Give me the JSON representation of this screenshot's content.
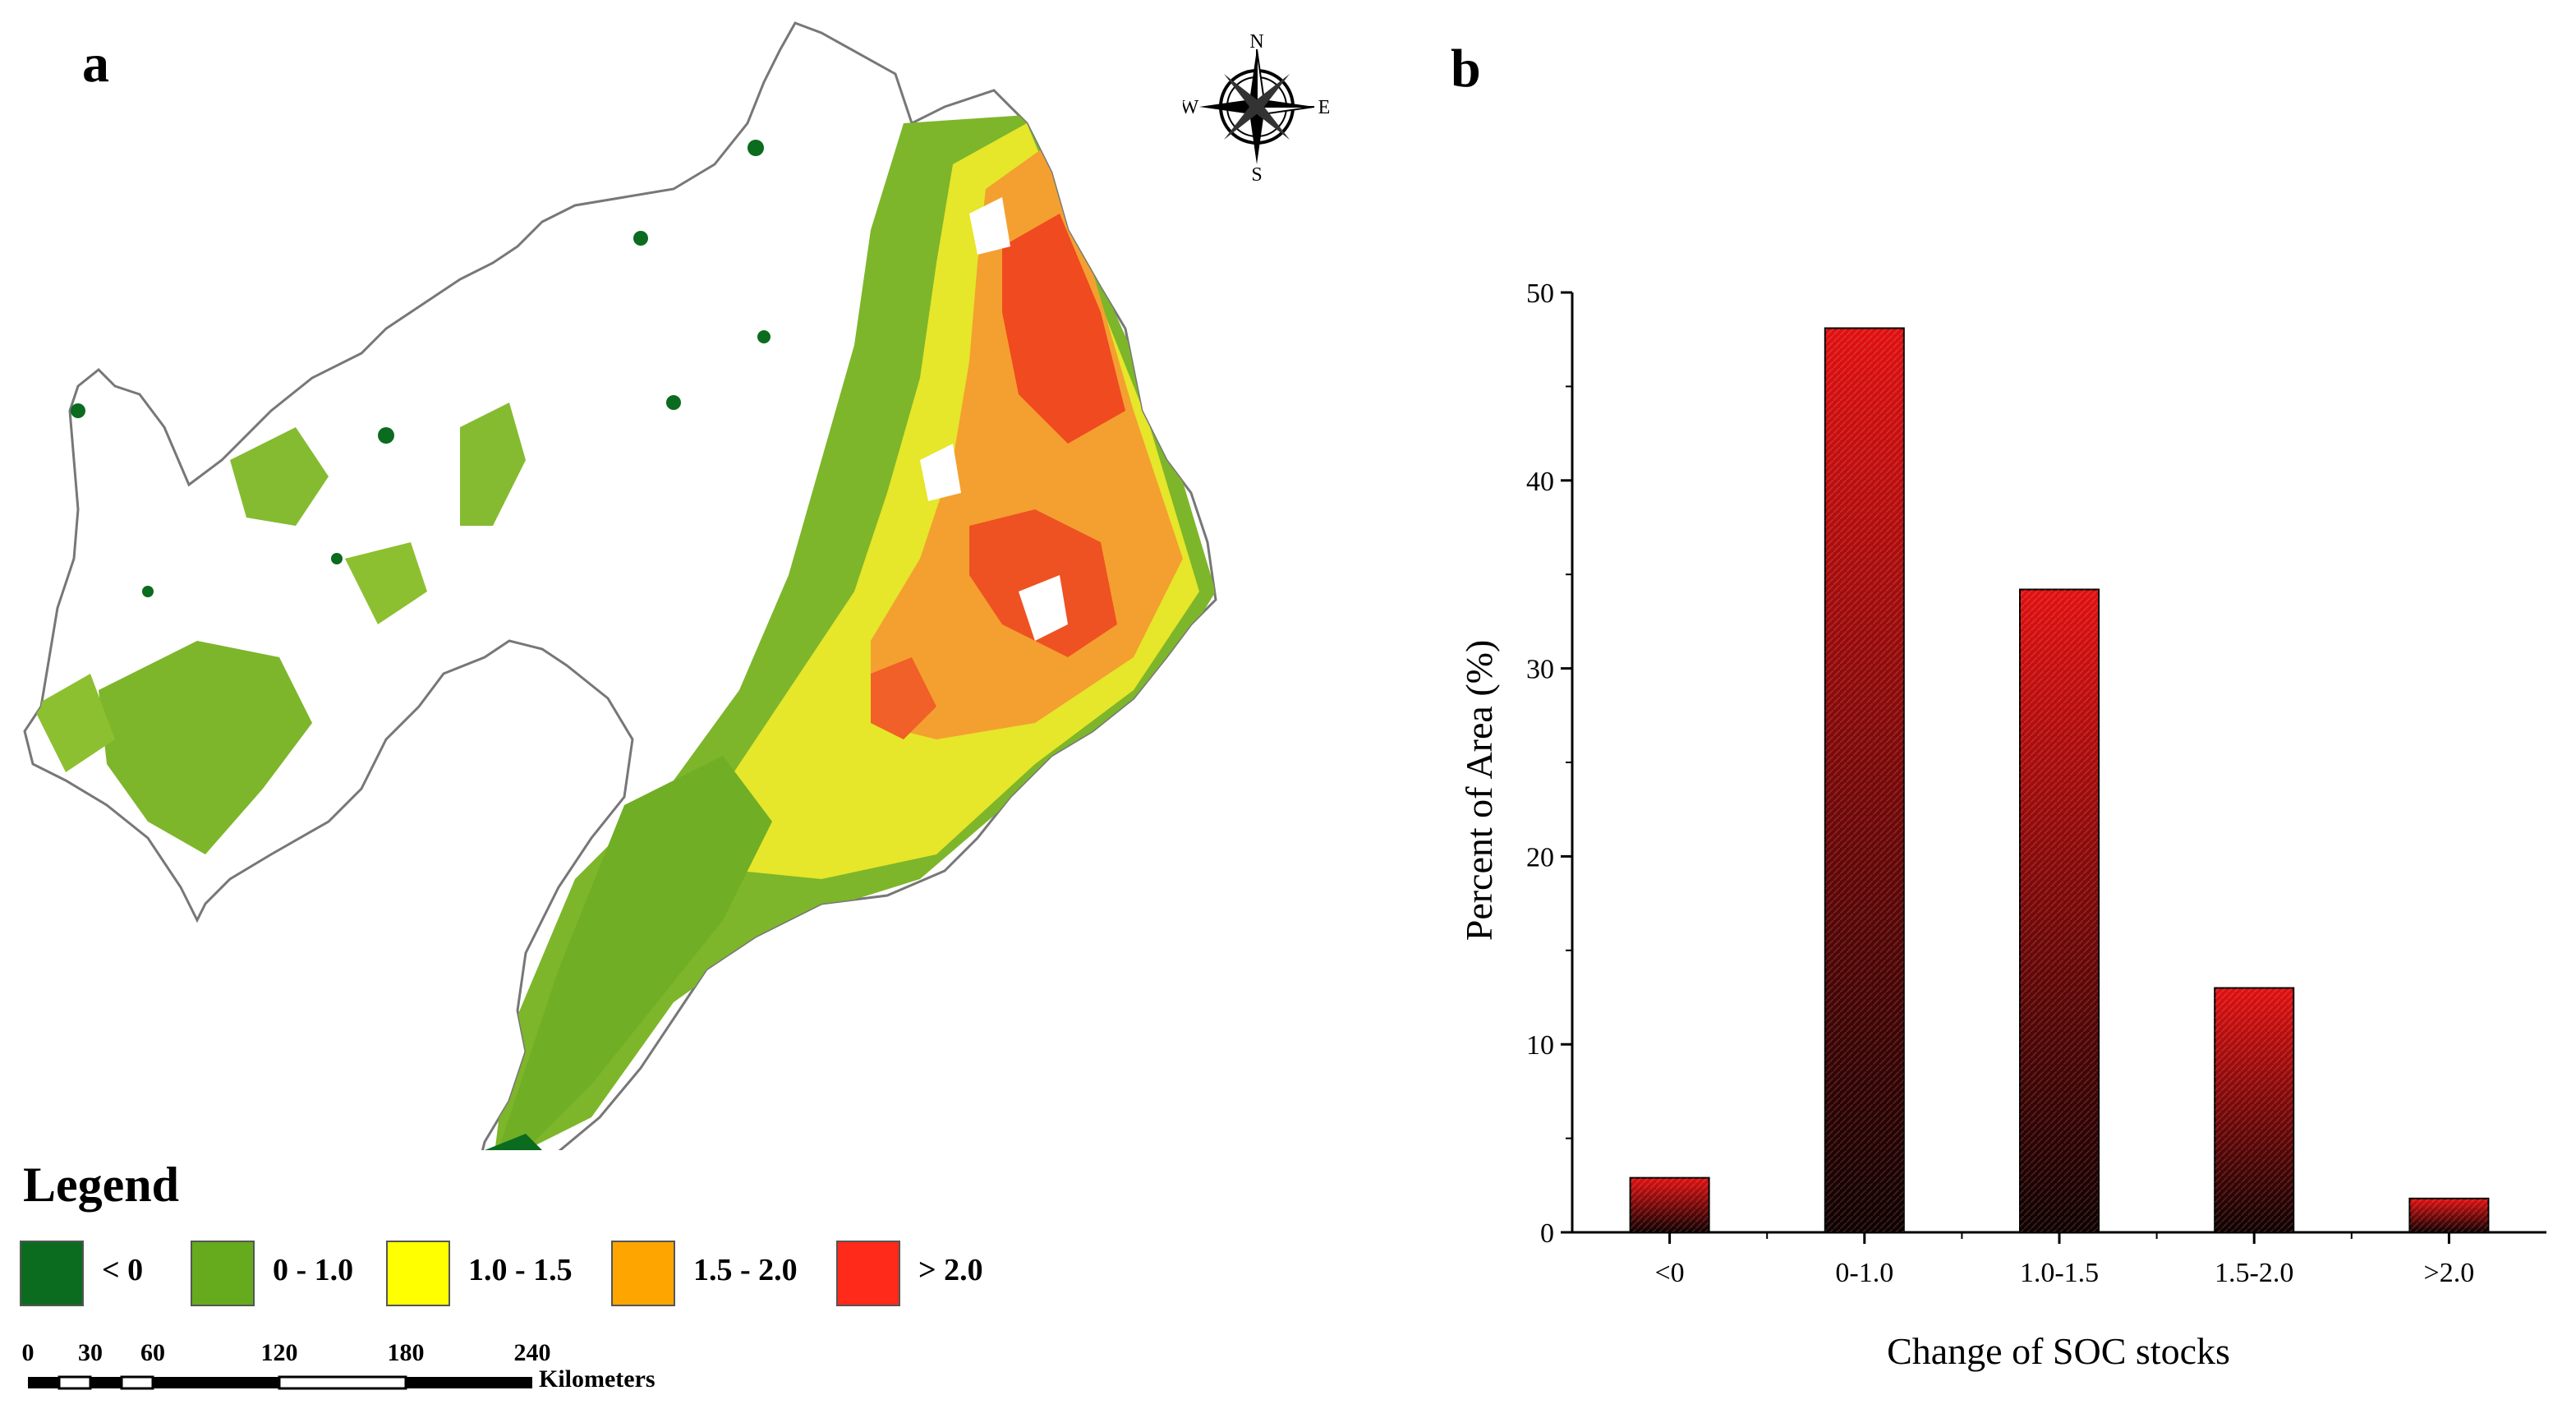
{
  "panel_a": {
    "label": "a",
    "compass": {
      "north": "N",
      "south": "S",
      "east": "E",
      "west": "W"
    },
    "legend": {
      "title": "Legend",
      "items": [
        {
          "label": "< 0",
          "color": "#0b6b1f"
        },
        {
          "label": "0 - 1.0",
          "color": "#66aa1e"
        },
        {
          "label": "1.0 - 1.5",
          "color": "#ffff00"
        },
        {
          "label": "1.5 - 2.0",
          "color": "#ffa500"
        },
        {
          "label": "> 2.0",
          "color": "#ff2a1a"
        }
      ]
    },
    "scale_bar": {
      "ticks": [
        "0",
        "30",
        "60",
        "120",
        "180",
        "240"
      ],
      "unit": "Kilometers"
    }
  },
  "panel_b": {
    "label": "b"
  },
  "chart_data": {
    "type": "bar",
    "categories": [
      "<0",
      "0-1.0",
      "1.0-1.5",
      "1.5-2.0",
      ">2.0"
    ],
    "values": [
      2.9,
      48.1,
      34.2,
      13.0,
      1.8
    ],
    "xlabel": "Change of SOC stocks",
    "ylabel": "Percent of Area (%)",
    "ylim": [
      0,
      50
    ],
    "yticks": [
      0,
      10,
      20,
      30,
      40,
      50
    ],
    "grid": false,
    "bar_colors": {
      "top": "#e01010",
      "bottom": "#100000"
    }
  }
}
